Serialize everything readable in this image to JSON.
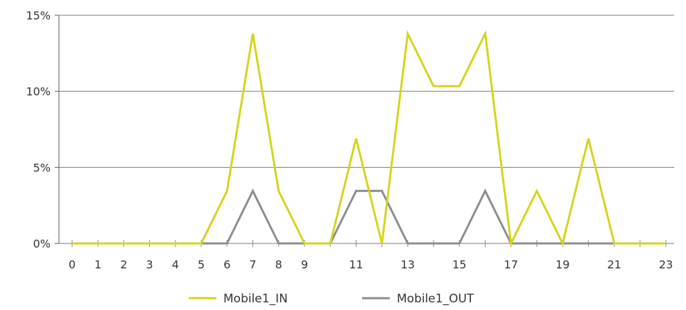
{
  "chart_data": {
    "type": "line",
    "x": [
      0,
      1,
      2,
      3,
      4,
      5,
      6,
      7,
      8,
      9,
      10,
      11,
      12,
      13,
      14,
      15,
      16,
      17,
      18,
      19,
      20,
      21,
      22,
      23
    ],
    "x_tick_labels": [
      "0",
      "1",
      "2",
      "3",
      "4",
      "5",
      "6",
      "7",
      "8",
      "9",
      "11",
      "13",
      "15",
      "17",
      "19",
      "21",
      "23"
    ],
    "y_tick_labels": [
      "0%",
      "5%",
      "10%",
      "15%"
    ],
    "ylim": [
      0,
      15
    ],
    "xlim": [
      0,
      23
    ],
    "grid": true,
    "legend_position": "bottom",
    "series": [
      {
        "name": "Mobile1_IN",
        "color": "#d4d41a",
        "values": [
          0,
          0,
          0,
          0,
          0,
          0,
          3.45,
          13.79,
          3.45,
          0,
          0,
          6.9,
          0,
          13.79,
          10.34,
          10.34,
          13.79,
          0,
          3.45,
          0,
          6.9,
          0,
          0,
          0
        ]
      },
      {
        "name": "Mobile1_OUT",
        "color": "#8c8c8c",
        "values": [
          0,
          0,
          0,
          0,
          0,
          0,
          0,
          3.45,
          0,
          0,
          0,
          3.45,
          3.45,
          0,
          0,
          0,
          3.45,
          0,
          0,
          0,
          0,
          0,
          0,
          0
        ]
      }
    ]
  }
}
